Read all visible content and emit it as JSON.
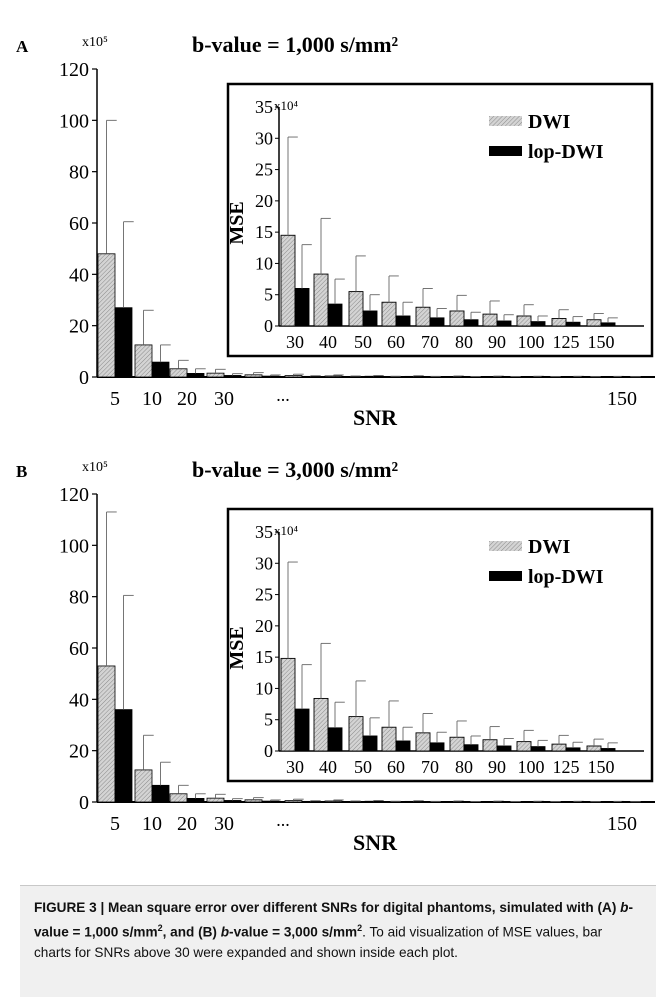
{
  "figure": {
    "caption_parts": [
      {
        "text": "FIGURE 3 | Mean square error over different SNRs for digital phantoms, simulated with (A) ",
        "bold": true,
        "italic": false
      },
      {
        "text": "b",
        "bold": true,
        "italic": true
      },
      {
        "text": "-value = 1,000 s/mm",
        "bold": true,
        "italic": false
      },
      {
        "text": "2",
        "bold": true,
        "italic": false,
        "sup": true
      },
      {
        "text": ", and (B) ",
        "bold": true,
        "italic": false
      },
      {
        "text": "b",
        "bold": true,
        "italic": true
      },
      {
        "text": "-value = 3,000 s/mm",
        "bold": true,
        "italic": false
      },
      {
        "text": "2",
        "bold": true,
        "italic": false,
        "sup": true
      },
      {
        "text": ". To aid visualization of MSE values, bar charts for SNRs above 30 were expanded and shown inside each plot.",
        "bold": false,
        "italic": false
      }
    ]
  },
  "colors": {
    "dwi_fill": "#d4d4d4",
    "dwi_hatch": "#8a8a8a",
    "lop_fill": "#000000",
    "axis": "#000000",
    "caption_bg": "#f0f0f0"
  },
  "chart_data": [
    {
      "panel_label": "A",
      "type": "bar",
      "title": "b-value = 1,000 s/mm²",
      "xlabel": "SNR",
      "ylabel": "",
      "y_multiplier": "x10⁵",
      "ylim": [
        0,
        120
      ],
      "yticks": [
        "0",
        "20",
        "40",
        "60",
        "80",
        "100",
        "120"
      ],
      "categories": [
        "5",
        "10",
        "20",
        "30",
        "",
        "",
        "",
        "",
        "",
        "",
        "",
        "",
        "",
        "150"
      ],
      "x_ellipsis": "...",
      "series": [
        {
          "name": "DWI",
          "values": [
            48,
            12.5,
            3.2,
            1.5,
            0.85,
            0.55,
            0.4,
            0.3,
            0.25,
            0.2,
            0.18,
            0.16,
            0.14,
            0.12
          ],
          "errors": [
            100,
            26,
            6.5,
            3,
            1.7,
            1.1,
            0.8,
            0.6,
            0.5,
            0.4,
            0.35,
            0.3,
            0.28,
            0.25
          ]
        },
        {
          "name": "lop-DWI",
          "values": [
            27,
            5.8,
            1.4,
            0.6,
            0.35,
            0.25,
            0.18,
            0.12,
            0.1,
            0.09,
            0.08,
            0.07,
            0.06,
            0.06
          ],
          "errors": [
            60.5,
            12.5,
            3.2,
            1.3,
            0.8,
            0.5,
            0.4,
            0.3,
            0.25,
            0.2,
            0.18,
            0.16,
            0.14,
            0.12
          ]
        }
      ],
      "inset": {
        "type": "bar",
        "ylabel": "MSE",
        "y_multiplier": "x10⁴",
        "ylim": [
          0,
          35
        ],
        "yticks": [
          "0",
          "5",
          "10",
          "15",
          "20",
          "25",
          "30",
          "35"
        ],
        "categories": [
          "30",
          "40",
          "50",
          "60",
          "70",
          "80",
          "90",
          "100",
          "125",
          "150"
        ],
        "legend_position": "top-right",
        "series": [
          {
            "name": "DWI",
            "values": [
              14.5,
              8.3,
              5.5,
              3.8,
              3.0,
              2.4,
              1.9,
              1.6,
              1.2,
              1.0
            ],
            "errors": [
              30.2,
              17.2,
              11.2,
              8.0,
              6.0,
              4.9,
              4.0,
              3.4,
              2.6,
              2.0
            ]
          },
          {
            "name": "lop-DWI",
            "values": [
              6.0,
              3.5,
              2.4,
              1.6,
              1.3,
              1.0,
              0.8,
              0.7,
              0.6,
              0.5
            ],
            "errors": [
              13.0,
              7.5,
              5.0,
              3.8,
              2.8,
              2.2,
              1.8,
              1.6,
              1.5,
              1.3
            ]
          }
        ]
      }
    },
    {
      "panel_label": "B",
      "type": "bar",
      "title": "b-value = 3,000 s/mm²",
      "xlabel": "SNR",
      "ylabel": "",
      "y_multiplier": "x10⁵",
      "ylim": [
        0,
        120
      ],
      "yticks": [
        "0",
        "20",
        "40",
        "60",
        "80",
        "100",
        "120"
      ],
      "categories": [
        "5",
        "10",
        "20",
        "30",
        "",
        "",
        "",
        "",
        "",
        "",
        "",
        "",
        "",
        "150"
      ],
      "x_ellipsis": "...",
      "series": [
        {
          "name": "DWI",
          "values": [
            53,
            12.5,
            3.2,
            1.5,
            0.85,
            0.55,
            0.4,
            0.3,
            0.25,
            0.2,
            0.18,
            0.16,
            0.14,
            0.12
          ],
          "errors": [
            113,
            26,
            6.5,
            3,
            1.7,
            1.1,
            0.8,
            0.6,
            0.5,
            0.4,
            0.35,
            0.3,
            0.28,
            0.25
          ]
        },
        {
          "name": "lop-DWI",
          "values": [
            36,
            6.5,
            1.4,
            0.6,
            0.35,
            0.25,
            0.18,
            0.12,
            0.1,
            0.09,
            0.08,
            0.07,
            0.06,
            0.06
          ],
          "errors": [
            80.5,
            15.5,
            3.2,
            1.3,
            0.8,
            0.5,
            0.4,
            0.3,
            0.25,
            0.2,
            0.18,
            0.16,
            0.14,
            0.12
          ]
        }
      ],
      "inset": {
        "type": "bar",
        "ylabel": "MSE",
        "y_multiplier": "x10⁴",
        "ylim": [
          0,
          35
        ],
        "yticks": [
          "0",
          "5",
          "10",
          "15",
          "20",
          "25",
          "30",
          "35"
        ],
        "categories": [
          "30",
          "40",
          "50",
          "60",
          "70",
          "80",
          "90",
          "100",
          "125",
          "150"
        ],
        "legend_position": "top-right",
        "series": [
          {
            "name": "DWI",
            "values": [
              14.8,
              8.4,
              5.5,
              3.8,
              2.9,
              2.2,
              1.8,
              1.5,
              1.1,
              0.8
            ],
            "errors": [
              30.2,
              17.2,
              11.2,
              8.0,
              6.0,
              4.8,
              3.9,
              3.3,
              2.5,
              1.9
            ]
          },
          {
            "name": "lop-DWI",
            "values": [
              6.7,
              3.7,
              2.4,
              1.6,
              1.3,
              1.0,
              0.8,
              0.7,
              0.5,
              0.4
            ],
            "errors": [
              13.8,
              7.8,
              5.3,
              3.8,
              3.0,
              2.4,
              2.0,
              1.7,
              1.4,
              1.3
            ]
          }
        ]
      }
    }
  ]
}
